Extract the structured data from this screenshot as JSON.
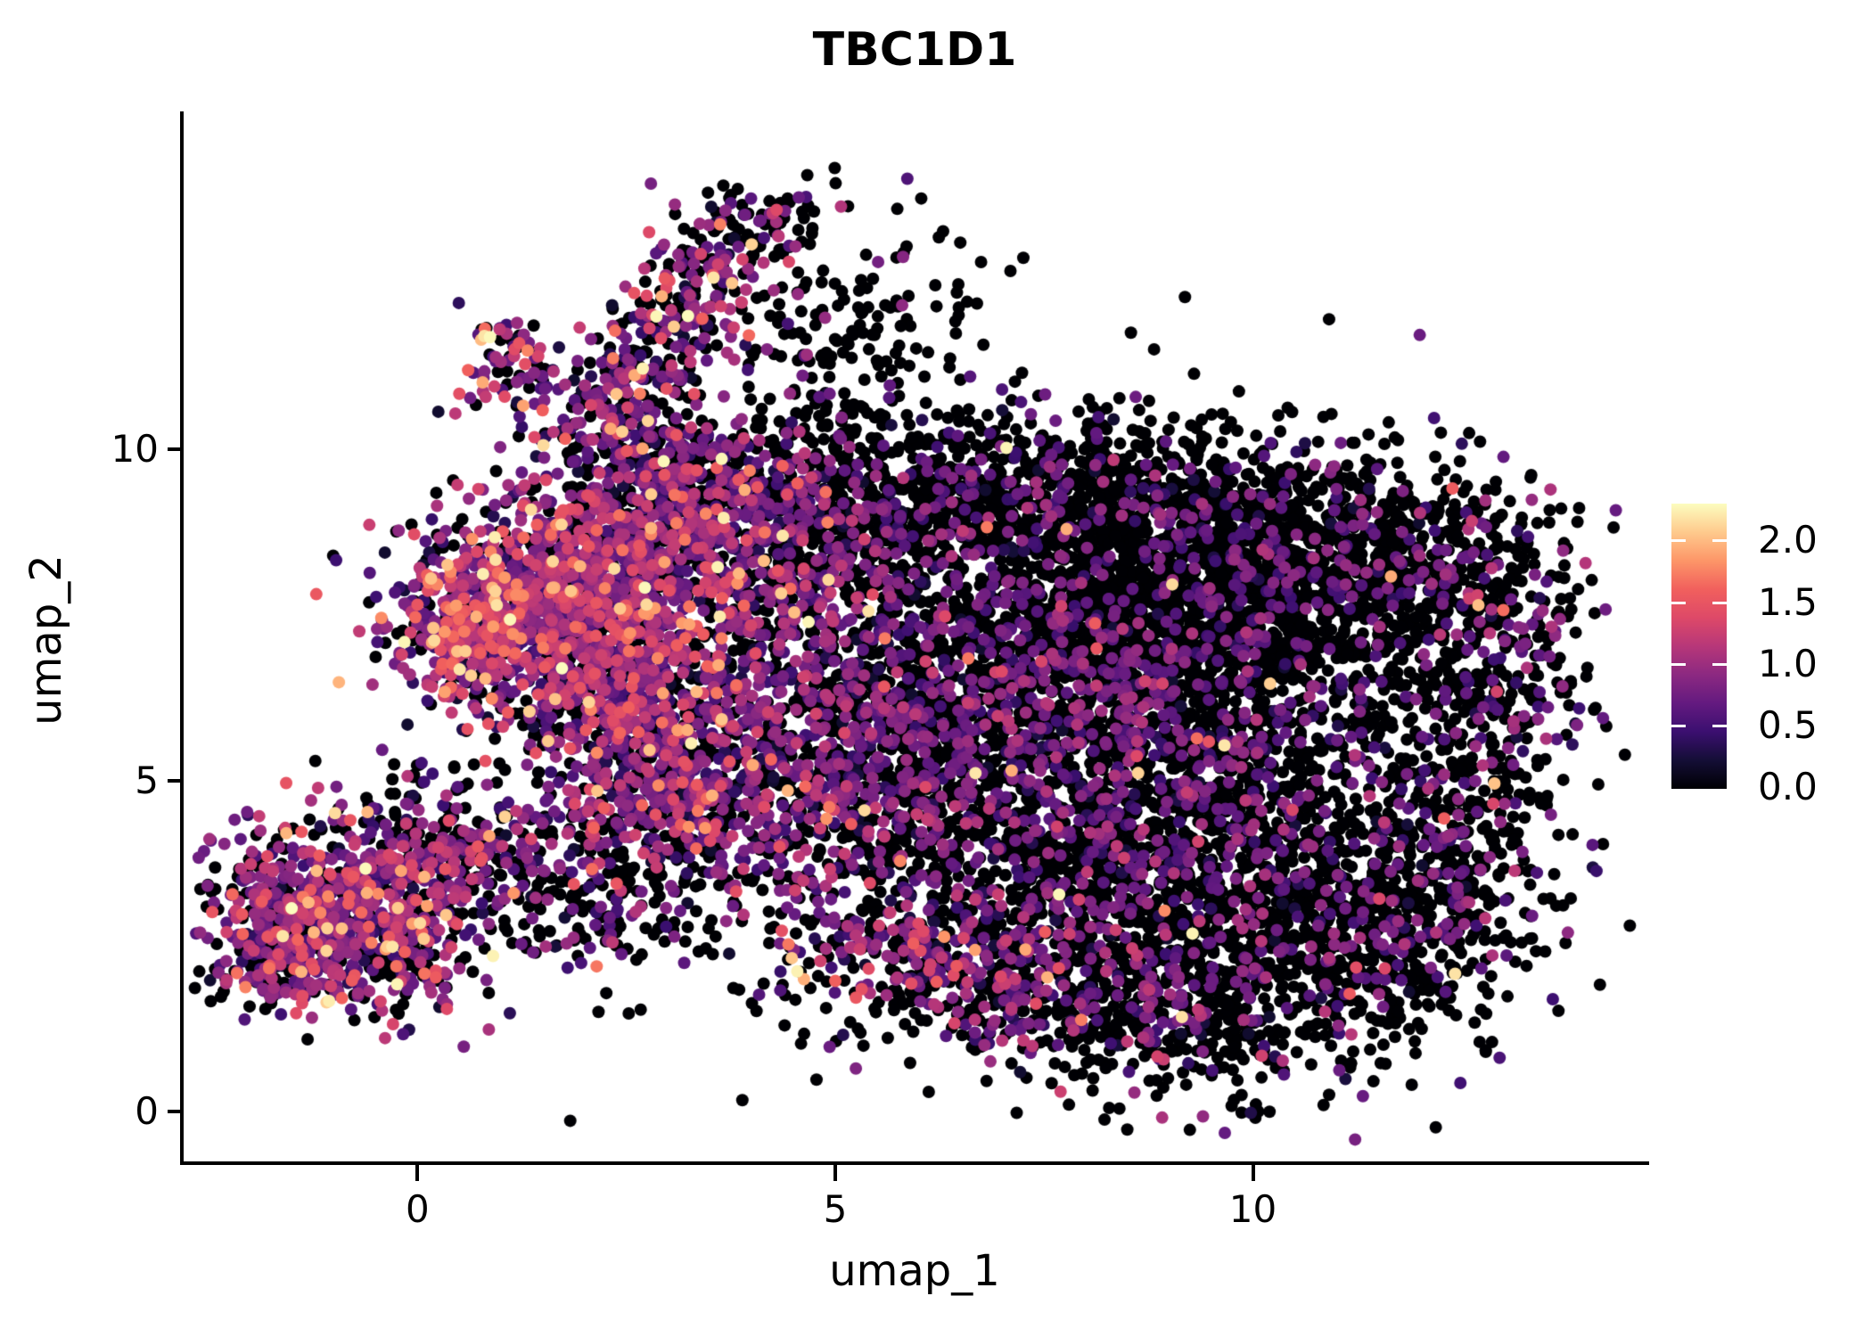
{
  "chart_data": {
    "type": "scatter",
    "title": "TBC1D1",
    "xlabel": "umap_1",
    "ylabel": "umap_2",
    "x_tick_values": [
      0,
      5,
      10
    ],
    "x_tick_labels": [
      "0",
      "5",
      "10"
    ],
    "y_tick_values": [
      0,
      5,
      10
    ],
    "y_tick_labels": [
      "0",
      "5",
      "10"
    ],
    "xlim": [
      -2.8,
      14.7
    ],
    "ylim": [
      -0.75,
      15.1
    ],
    "grid": false,
    "background": "#ffffff",
    "point_radius_px": 7,
    "point_sorting": "expression-ascending",
    "colormap": {
      "name": "magma",
      "stops": [
        [
          0.0,
          "#000004"
        ],
        [
          0.1,
          "#140e36"
        ],
        [
          0.2,
          "#3b0f70"
        ],
        [
          0.3,
          "#641a80"
        ],
        [
          0.4,
          "#8c2981"
        ],
        [
          0.5,
          "#b73779"
        ],
        [
          0.6,
          "#de4968"
        ],
        [
          0.7,
          "#f1605d"
        ],
        [
          0.8,
          "#fd9668"
        ],
        [
          0.9,
          "#feca8d"
        ],
        [
          1.0,
          "#fcfdbf"
        ]
      ]
    },
    "colorbar": {
      "position": "right",
      "vmin": 0.0,
      "vmax": 2.3,
      "tick_values": [
        2.0,
        1.5,
        1.0,
        0.5,
        0.0
      ],
      "tick_labels": [
        "2.0",
        "1.5",
        "1.0",
        "0.5",
        "0.0"
      ]
    },
    "seed": 2024042,
    "clusters": [
      {
        "name": "cloud-top-left",
        "n": 500,
        "cx": 5.2,
        "cy": 8.8,
        "sx": 1.0,
        "sy": 0.7,
        "p0": 0.68,
        "m": 0.72,
        "s": 0.24,
        "hi": 0.01
      },
      {
        "name": "cloud-top-a",
        "n": 500,
        "cx": 7.0,
        "cy": 9.3,
        "sx": 1.2,
        "sy": 0.6,
        "p0": 0.8,
        "m": 0.7,
        "s": 0.22,
        "hi": 0.008
      },
      {
        "name": "cloud-top-b",
        "n": 600,
        "cx": 9.0,
        "cy": 9.0,
        "sx": 1.2,
        "sy": 0.7,
        "p0": 0.82,
        "m": 0.7,
        "s": 0.22,
        "hi": 0.008
      },
      {
        "name": "cloud-core",
        "n": 1000,
        "cx": 8.3,
        "cy": 7.3,
        "sx": 1.3,
        "sy": 0.9,
        "p0": 0.86,
        "m": 0.68,
        "s": 0.2,
        "hi": 0.005
      },
      {
        "name": "cloud-core-right",
        "n": 550,
        "cx": 10.3,
        "cy": 7.8,
        "sx": 1.0,
        "sy": 0.8,
        "p0": 0.84,
        "m": 0.7,
        "s": 0.22,
        "hi": 0.008
      },
      {
        "name": "cloud-right-top-lobe",
        "n": 420,
        "cx": 11.8,
        "cy": 8.4,
        "sx": 0.9,
        "sy": 0.8,
        "p0": 0.78,
        "m": 0.72,
        "s": 0.24,
        "hi": 0.012
      },
      {
        "name": "cloud-right-edge-arc",
        "n": 330,
        "cx": 12.9,
        "cy": 6.3,
        "sx": 0.55,
        "sy": 1.3,
        "p0": 0.72,
        "m": 0.75,
        "s": 0.26,
        "hi": 0.015
      },
      {
        "name": "cloud-right-hole",
        "n": 260,
        "cx": 11.1,
        "cy": 5.6,
        "sx": 1.0,
        "sy": 1.3,
        "p0": 0.85,
        "m": 0.7,
        "s": 0.22,
        "hi": 0.01
      },
      {
        "name": "cloud-mid-purple",
        "n": 650,
        "cx": 9.0,
        "cy": 5.5,
        "sx": 1.05,
        "sy": 1.0,
        "p0": 0.62,
        "m": 0.72,
        "s": 0.24,
        "hi": 0.02
      },
      {
        "name": "cloud-mid-left",
        "n": 450,
        "cx": 7.0,
        "cy": 6.1,
        "sx": 1.0,
        "sy": 1.0,
        "p0": 0.65,
        "m": 0.72,
        "s": 0.25,
        "hi": 0.015
      },
      {
        "name": "cloud-left-mixed",
        "n": 420,
        "cx": 5.6,
        "cy": 6.3,
        "sx": 0.9,
        "sy": 1.0,
        "p0": 0.5,
        "m": 0.78,
        "s": 0.3,
        "hi": 0.03
      },
      {
        "name": "cloud-left-lower",
        "n": 380,
        "cx": 5.0,
        "cy": 4.7,
        "sx": 0.9,
        "sy": 0.8,
        "p0": 0.55,
        "m": 0.78,
        "s": 0.3,
        "hi": 0.03
      },
      {
        "name": "cloud-hole-left",
        "n": 250,
        "cx": 6.6,
        "cy": 4.4,
        "sx": 1.0,
        "sy": 0.8,
        "p0": 0.7,
        "m": 0.72,
        "s": 0.25,
        "hi": 0.015
      },
      {
        "name": "cloud-bottom-a",
        "n": 620,
        "cx": 8.5,
        "cy": 3.6,
        "sx": 1.2,
        "sy": 0.9,
        "p0": 0.78,
        "m": 0.72,
        "s": 0.24,
        "hi": 0.015
      },
      {
        "name": "cloud-bottom-b",
        "n": 480,
        "cx": 10.4,
        "cy": 3.2,
        "sx": 1.0,
        "sy": 0.9,
        "p0": 0.82,
        "m": 0.7,
        "s": 0.22,
        "hi": 0.01
      },
      {
        "name": "cloud-bottom-right-edge",
        "n": 300,
        "cx": 11.8,
        "cy": 2.6,
        "sx": 0.8,
        "sy": 0.7,
        "p0": 0.8,
        "m": 0.72,
        "s": 0.24,
        "hi": 0.01
      },
      {
        "name": "cloud-bottom-v",
        "n": 450,
        "cx": 9.3,
        "cy": 1.5,
        "sx": 1.2,
        "sy": 0.7,
        "p0": 0.72,
        "m": 0.78,
        "s": 0.3,
        "hi": 0.04
      },
      {
        "name": "cloud-bottom-v-left",
        "n": 330,
        "cx": 7.3,
        "cy": 1.9,
        "sx": 1.0,
        "sy": 0.6,
        "p0": 0.55,
        "m": 0.8,
        "s": 0.32,
        "hi": 0.06
      },
      {
        "name": "cloud-bottom-band",
        "n": 240,
        "cx": 5.9,
        "cy": 2.6,
        "sx": 0.8,
        "sy": 0.5,
        "p0": 0.5,
        "m": 0.8,
        "s": 0.32,
        "hi": 0.06
      },
      {
        "name": "cloud-right-fill",
        "n": 140,
        "cx": 12.5,
        "cy": 4.2,
        "sx": 0.5,
        "sy": 0.8,
        "p0": 0.8,
        "m": 0.72,
        "s": 0.24,
        "hi": 0.01
      },
      {
        "name": "cloud-left-edge",
        "n": 280,
        "cx": 4.4,
        "cy": 7.6,
        "sx": 0.6,
        "sy": 0.9,
        "p0": 0.42,
        "m": 0.8,
        "s": 0.32,
        "hi": 0.05
      },
      {
        "name": "left-colorful-core",
        "n": 650,
        "cx": 1.6,
        "cy": 7.8,
        "sx": 0.8,
        "sy": 0.8,
        "p0": 0.25,
        "m": 0.85,
        "s": 0.35,
        "hi": 0.06
      },
      {
        "name": "left-colorful-hotspot",
        "n": 320,
        "cx": 0.55,
        "cy": 7.3,
        "sx": 0.45,
        "sy": 0.55,
        "p0": 0.15,
        "m": 0.95,
        "s": 0.4,
        "hi": 0.1
      },
      {
        "name": "left-colorful-top",
        "n": 480,
        "cx": 2.6,
        "cy": 8.5,
        "sx": 0.85,
        "sy": 0.7,
        "p0": 0.32,
        "m": 0.85,
        "s": 0.35,
        "hi": 0.05
      },
      {
        "name": "left-colorful-lower",
        "n": 520,
        "cx": 2.2,
        "cy": 6.6,
        "sx": 0.8,
        "sy": 0.8,
        "p0": 0.28,
        "m": 0.85,
        "s": 0.35,
        "hi": 0.06
      },
      {
        "name": "left-colorful-se",
        "n": 420,
        "cx": 3.2,
        "cy": 5.6,
        "sx": 0.8,
        "sy": 0.8,
        "p0": 0.38,
        "m": 0.82,
        "s": 0.33,
        "hi": 0.05
      },
      {
        "name": "left-descending-band",
        "n": 300,
        "cx": 2.7,
        "cy": 4.5,
        "sx": 0.8,
        "sy": 0.6,
        "p0": 0.4,
        "m": 0.82,
        "s": 0.34,
        "hi": 0.08
      },
      {
        "name": "left-colorful-top-edge",
        "n": 280,
        "cx": 3.6,
        "cy": 9.3,
        "sx": 0.8,
        "sy": 0.5,
        "p0": 0.45,
        "m": 0.8,
        "s": 0.3,
        "hi": 0.04
      },
      {
        "name": "arm-seg-1",
        "n": 115,
        "cx": 2.2,
        "cy": 10.4,
        "sx": 0.4,
        "sy": 0.35,
        "p0": 0.42,
        "m": 0.82,
        "s": 0.35,
        "hi": 0.07
      },
      {
        "name": "arm-seg-2",
        "n": 105,
        "cx": 2.7,
        "cy": 11.2,
        "sx": 0.4,
        "sy": 0.35,
        "p0": 0.42,
        "m": 0.82,
        "s": 0.35,
        "hi": 0.07
      },
      {
        "name": "arm-seg-3",
        "n": 100,
        "cx": 3.2,
        "cy": 12.0,
        "sx": 0.4,
        "sy": 0.35,
        "p0": 0.42,
        "m": 0.82,
        "s": 0.35,
        "hi": 0.07
      },
      {
        "name": "arm-seg-4",
        "n": 90,
        "cx": 3.6,
        "cy": 12.8,
        "sx": 0.4,
        "sy": 0.35,
        "p0": 0.42,
        "m": 0.82,
        "s": 0.35,
        "hi": 0.07
      },
      {
        "name": "arm-tip",
        "n": 60,
        "cx": 4.0,
        "cy": 13.4,
        "sx": 0.45,
        "sy": 0.3,
        "p0": 0.5,
        "m": 0.8,
        "s": 0.33,
        "hi": 0.06
      },
      {
        "name": "arm-left-lobe",
        "n": 80,
        "cx": 1.1,
        "cy": 11.4,
        "sx": 0.35,
        "sy": 0.4,
        "p0": 0.3,
        "m": 0.9,
        "s": 0.38,
        "hi": 0.09
      },
      {
        "name": "arm-right-scatter",
        "n": 130,
        "cx": 5.2,
        "cy": 12.0,
        "sx": 0.85,
        "sy": 0.9,
        "p0": 0.92,
        "m": 0.7,
        "s": 0.22,
        "hi": 0.01
      },
      {
        "name": "arm-below-scatter",
        "n": 100,
        "cx": 4.6,
        "cy": 10.6,
        "sx": 0.7,
        "sy": 0.7,
        "p0": 0.88,
        "m": 0.7,
        "s": 0.22,
        "hi": 0.02
      },
      {
        "name": "arm-neck",
        "n": 110,
        "cx": 3.0,
        "cy": 9.95,
        "sx": 0.5,
        "sy": 0.4,
        "p0": 0.55,
        "m": 0.78,
        "s": 0.3,
        "hi": 0.04
      },
      {
        "name": "bottomleft-cluster-main",
        "n": 430,
        "cx": -1.2,
        "cy": 3.3,
        "sx": 0.7,
        "sy": 0.6,
        "p0": 0.3,
        "m": 0.85,
        "s": 0.33,
        "hi": 0.07
      },
      {
        "name": "bottomleft-cluster-lower",
        "n": 340,
        "cx": -0.4,
        "cy": 2.6,
        "sx": 0.6,
        "sy": 0.55,
        "p0": 0.33,
        "m": 0.85,
        "s": 0.33,
        "hi": 0.08
      },
      {
        "name": "bottomleft-cluster-west",
        "n": 190,
        "cx": -1.7,
        "cy": 2.3,
        "sx": 0.45,
        "sy": 0.4,
        "p0": 0.35,
        "m": 0.85,
        "s": 0.33,
        "hi": 0.06
      },
      {
        "name": "bottomleft-cluster-ne",
        "n": 150,
        "cx": 0.3,
        "cy": 3.9,
        "sx": 0.5,
        "sy": 0.4,
        "p0": 0.4,
        "m": 0.82,
        "s": 0.33,
        "hi": 0.05
      },
      {
        "name": "bottomleft-bridge-a",
        "n": 90,
        "cx": 1.3,
        "cy": 3.6,
        "sx": 0.7,
        "sy": 0.5,
        "p0": 0.55,
        "m": 0.8,
        "s": 0.3,
        "hi": 0.06
      },
      {
        "name": "bottomleft-bridge-b",
        "n": 70,
        "cx": 2.0,
        "cy": 2.9,
        "sx": 0.6,
        "sy": 0.4,
        "p0": 0.65,
        "m": 0.8,
        "s": 0.3,
        "hi": 0.05
      },
      {
        "name": "bottomleft-outliers-top",
        "n": 40,
        "cx": 0.0,
        "cy": 4.9,
        "sx": 0.6,
        "sy": 0.3,
        "p0": 0.6,
        "m": 0.8,
        "s": 0.3,
        "hi": 0.03
      },
      {
        "name": "cloud-speckle",
        "n": 260,
        "cx": 8.5,
        "cy": 5.2,
        "sx": 2.8,
        "sy": 2.6,
        "p0": 0.88,
        "m": 0.7,
        "s": 0.22,
        "hi": 0.01
      },
      {
        "name": "bridge-speckle",
        "n": 140,
        "cx": 3.6,
        "cy": 3.2,
        "sx": 1.2,
        "sy": 0.9,
        "p0": 0.7,
        "m": 0.78,
        "s": 0.3,
        "hi": 0.05
      }
    ]
  }
}
